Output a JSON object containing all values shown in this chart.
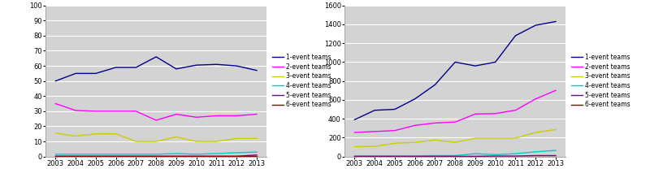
{
  "years": [
    2003,
    2004,
    2005,
    2006,
    2007,
    2008,
    2009,
    2010,
    2011,
    2012,
    2013
  ],
  "left": {
    "1-event teams": [
      50.0,
      55.0,
      55.0,
      59.0,
      59.0,
      66.0,
      58.0,
      60.5,
      61.0,
      60.0,
      57.0
    ],
    "2-event teams": [
      35.0,
      30.5,
      30.0,
      30.0,
      30.0,
      24.0,
      28.0,
      26.0,
      27.0,
      27.0,
      28.0
    ],
    "3-event teams": [
      15.5,
      13.5,
      15.0,
      15.0,
      10.0,
      10.0,
      13.0,
      10.0,
      10.0,
      12.0,
      12.0
    ],
    "4-event teams": [
      1.5,
      1.5,
      1.5,
      1.5,
      1.5,
      1.5,
      2.0,
      1.5,
      2.0,
      2.5,
      3.0
    ],
    "5-event teams": [
      0.2,
      0.2,
      0.2,
      0.2,
      0.2,
      0.2,
      0.2,
      0.2,
      0.2,
      0.2,
      1.0
    ],
    "6-event teams": [
      0.1,
      0.1,
      0.1,
      0.1,
      0.1,
      0.1,
      0.1,
      0.1,
      0.1,
      0.1,
      0.1
    ]
  },
  "right": {
    "1-event teams": [
      390,
      490,
      500,
      610,
      760,
      1000,
      960,
      1000,
      1280,
      1390,
      1430
    ],
    "2-event teams": [
      255,
      265,
      275,
      330,
      355,
      365,
      450,
      455,
      490,
      610,
      700
    ],
    "3-event teams": [
      105,
      108,
      140,
      150,
      175,
      150,
      195,
      195,
      195,
      255,
      285
    ],
    "4-event teams": [
      5,
      5,
      5,
      5,
      10,
      10,
      30,
      20,
      30,
      50,
      65
    ],
    "5-event teams": [
      2,
      2,
      2,
      2,
      2,
      2,
      2,
      5,
      5,
      10,
      10
    ],
    "6-event teams": [
      1,
      1,
      1,
      1,
      1,
      1,
      1,
      1,
      1,
      1,
      1
    ]
  },
  "colors": {
    "1-event teams": "#00008B",
    "2-event teams": "#FF00FF",
    "3-event teams": "#CCCC00",
    "4-event teams": "#00CCCC",
    "5-event teams": "#800080",
    "6-event teams": "#8B0000"
  },
  "left_ylim": [
    0,
    100
  ],
  "left_yticks": [
    0.0,
    10.0,
    20.0,
    30.0,
    40.0,
    50.0,
    60.0,
    70.0,
    80.0,
    90.0,
    100.0
  ],
  "right_ylim": [
    0,
    1600
  ],
  "right_yticks": [
    0,
    200,
    400,
    600,
    800,
    1000,
    1200,
    1400,
    1600
  ],
  "bg_color": "#D3D3D3",
  "legend_labels": [
    "1-event teams",
    "2-event teams",
    "3-event teams",
    "4-event teams",
    "5-event teams",
    "6-event teams"
  ]
}
